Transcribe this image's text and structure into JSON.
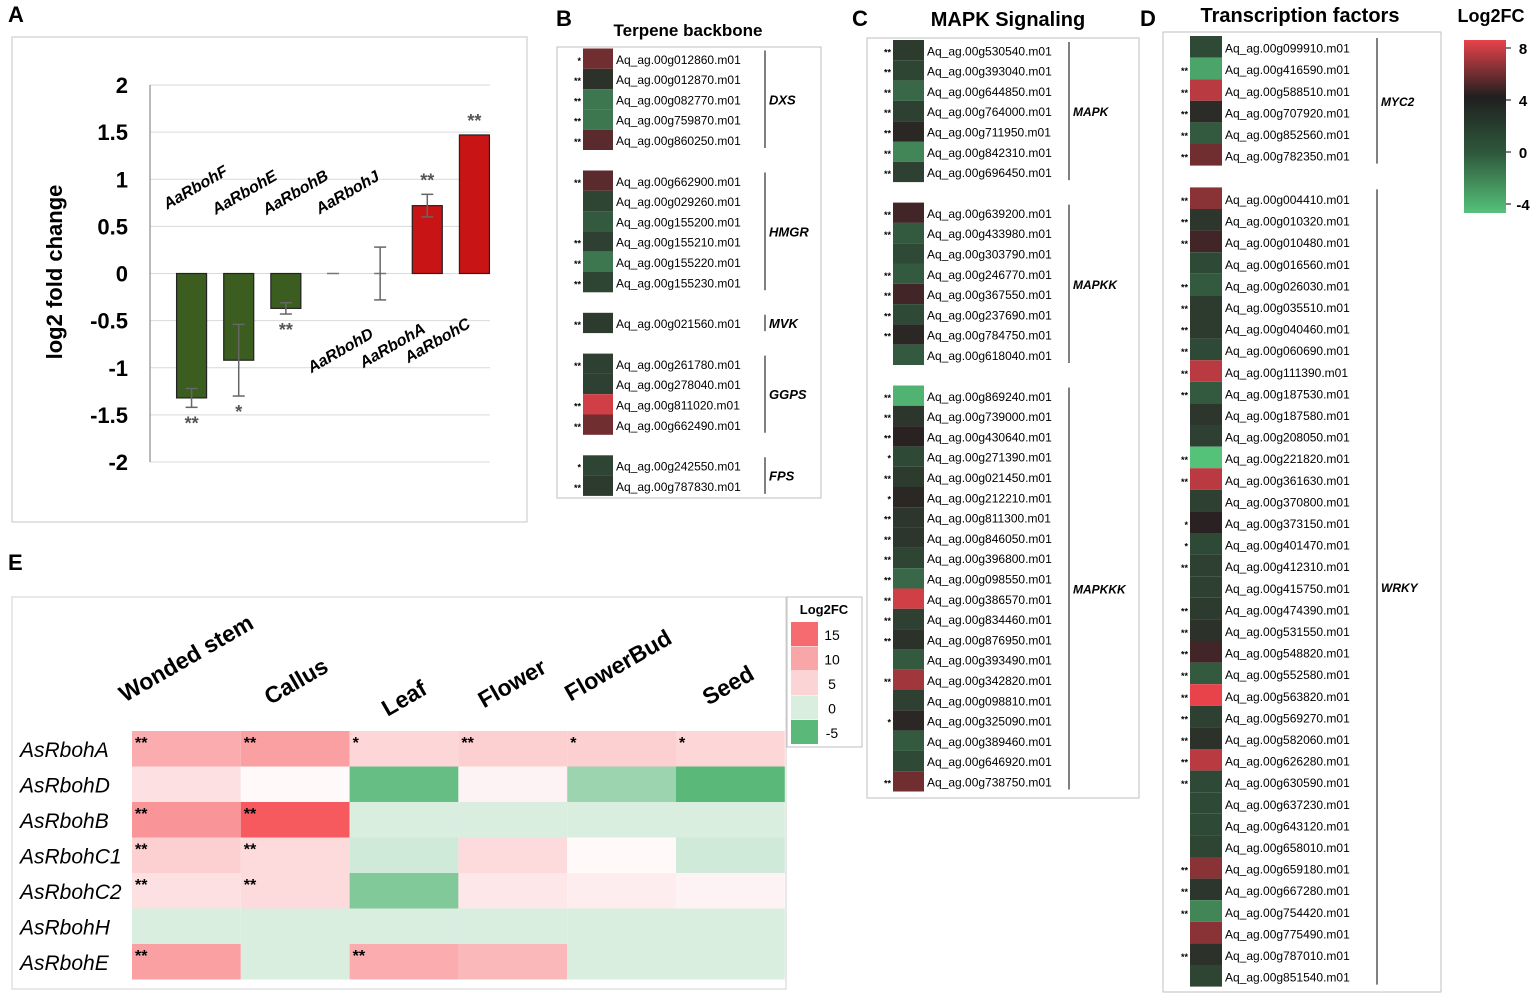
{
  "colors": {
    "heat_high": "#e8434b",
    "heat_mid": "#1f1f1f",
    "heat_low": "#55c27a",
    "bar_down": "#3b5d20",
    "bar_up": "#c81414",
    "rboh_high": "#f85a5e",
    "rboh_low": "#5ab879"
  },
  "chart_data": [
    {
      "type": "bar",
      "panel": "A",
      "ylabel": "log2 fold change",
      "ylim": [
        -2,
        2
      ],
      "yticks": [
        "2",
        "1.5",
        "1",
        "0.5",
        "0",
        "-0.5",
        "-1",
        "-1.5",
        "-2"
      ],
      "categories": [
        "AaRbohF",
        "AaRbohE",
        "AaRbohB",
        "AaRbohJ",
        "AaRbohD",
        "AaRbohA",
        "AaRbohC"
      ],
      "values": [
        -1.32,
        -0.92,
        -0.37,
        0.0,
        0.0,
        0.72,
        1.47
      ],
      "errors": [
        0.1,
        0.38,
        0.06,
        0.0,
        0.28,
        0.12,
        0.0
      ],
      "significance": [
        "**",
        "*",
        "**",
        "",
        "",
        "**",
        "**"
      ]
    },
    {
      "type": "heatmap",
      "panel": "B",
      "title": "Terpene backbone",
      "groups": [
        {
          "label": "DXS",
          "genes": [
            "Aq_ag.00g012860.m01",
            "Aq_ag.00g012870.m01",
            "Aq_ag.00g082770.m01",
            "Aq_ag.00g759870.m01",
            "Aq_ag.00g860250.m01"
          ],
          "values": [
            5.5,
            2.5,
            -1.5,
            -1.5,
            5
          ],
          "sig": [
            "*",
            "**",
            "**",
            "**",
            "**"
          ]
        },
        {
          "label": "HMGR",
          "genes": [
            "Aq_ag.00g662900.m01",
            "Aq_ag.00g029260.m01",
            "Aq_ag.00g155200.m01",
            "Aq_ag.00g155210.m01",
            "Aq_ag.00g155220.m01",
            "Aq_ag.00g155230.m01"
          ],
          "values": [
            5,
            0.5,
            -0.5,
            1,
            -1.5,
            0.5
          ],
          "sig": [
            "**",
            "",
            "",
            "**",
            "**",
            "**"
          ]
        },
        {
          "label": "MVK",
          "genes": [
            "Aq_ag.00g021560.m01"
          ],
          "values": [
            1.5
          ],
          "sig": [
            "**"
          ]
        },
        {
          "label": "GGPS",
          "genes": [
            "Aq_ag.00g261780.m01",
            "Aq_ag.00g278040.m01",
            "Aq_ag.00g811020.m01",
            "Aq_ag.00g662490.m01"
          ],
          "values": [
            1,
            1,
            7.5,
            5.5
          ],
          "sig": [
            "**",
            "",
            "**",
            "**"
          ]
        },
        {
          "label": "FPS",
          "genes": [
            "Aq_ag.00g242550.m01",
            "Aq_ag.00g787830.m01"
          ],
          "values": [
            0.5,
            1.5
          ],
          "sig": [
            "*",
            "**"
          ]
        }
      ]
    },
    {
      "type": "heatmap",
      "panel": "C",
      "title": "MAPK Signaling",
      "groups": [
        {
          "label": "MAPK",
          "genes": [
            "Aq_ag.00g530540.m01",
            "Aq_ag.00g393040.m01",
            "Aq_ag.00g644850.m01",
            "Aq_ag.00g764000.m01",
            "Aq_ag.00g711950.m01",
            "Aq_ag.00g842310.m01",
            "Aq_ag.00g696450.m01"
          ],
          "values": [
            1.5,
            0.5,
            -1,
            1,
            3.5,
            -2,
            1
          ],
          "sig": [
            "**",
            "**",
            "**",
            "**",
            "**",
            "**",
            "**"
          ]
        },
        {
          "label": "MAPKK",
          "genes": [
            "Aq_ag.00g639200.m01",
            "Aq_ag.00g433980.m01",
            "Aq_ag.00g303790.m01",
            "Aq_ag.00g246770.m01",
            "Aq_ag.00g367550.m01",
            "Aq_ag.00g237690.m01",
            "Aq_ag.00g784750.m01",
            "Aq_ag.00g618040.m01"
          ],
          "values": [
            4.5,
            -0.5,
            0,
            -0.5,
            4.5,
            0,
            3.5,
            -0.5
          ],
          "sig": [
            "**",
            "**",
            "",
            "**",
            "**",
            "**",
            "**",
            ""
          ]
        },
        {
          "label": "MAPKKK",
          "genes": [
            "Aq_ag.00g869240.m01",
            "Aq_ag.00g739000.m01",
            "Aq_ag.00g430640.m01",
            "Aq_ag.00g271390.m01",
            "Aq_ag.00g021450.m01",
            "Aq_ag.00g212210.m01",
            "Aq_ag.00g811300.m01",
            "Aq_ag.00g846050.m01",
            "Aq_ag.00g396800.m01",
            "Aq_ag.00g098550.m01",
            "Aq_ag.00g386570.m01",
            "Aq_ag.00g834460.m01",
            "Aq_ag.00g876950.m01",
            "Aq_ag.00g393490.m01",
            "Aq_ag.00g342820.m01",
            "Aq_ag.00g098810.m01",
            "Aq_ag.00g325090.m01",
            "Aq_ag.00g389460.m01",
            "Aq_ag.00g646920.m01",
            "Aq_ag.00g738750.m01"
          ],
          "values": [
            -3.5,
            2,
            4,
            0,
            1.5,
            3.5,
            2,
            2,
            0.5,
            -1,
            7.5,
            1,
            2.5,
            -0.5,
            6.5,
            1,
            3.5,
            -0.5,
            0,
            5.5
          ],
          "sig": [
            "**",
            "**",
            "**",
            "*",
            "**",
            "*",
            "**",
            "**",
            "**",
            "**",
            "**",
            "**",
            "**",
            "",
            "**",
            "",
            "*",
            "",
            "",
            "**"
          ]
        }
      ]
    },
    {
      "type": "heatmap",
      "panel": "D",
      "title": "Transcription factors",
      "groups": [
        {
          "label": "MYC2",
          "genes": [
            "Aq_ag.00g099910.m01",
            "Aq_ag.00g416590.m01",
            "Aq_ag.00g588510.m01",
            "Aq_ag.00g707920.m01",
            "Aq_ag.00g852560.m01",
            "Aq_ag.00g782350.m01"
          ],
          "values": [
            0,
            -3,
            7,
            3,
            -0.5,
            5.5
          ],
          "sig": [
            "",
            "**",
            "**",
            "**",
            "**",
            "**"
          ]
        },
        {
          "label": "WRKY",
          "genes": [
            "Aq_ag.00g004410.m01",
            "Aq_ag.00g010320.m01",
            "Aq_ag.00g010480.m01",
            "Aq_ag.00g016560.m01",
            "Aq_ag.00g026030.m01",
            "Aq_ag.00g035510.m01",
            "Aq_ag.00g040460.m01",
            "Aq_ag.00g060690.m01",
            "Aq_ag.00g111390.m01",
            "Aq_ag.00g187530.m01",
            "Aq_ag.00g187580.m01",
            "Aq_ag.00g208050.m01",
            "Aq_ag.00g221820.m01",
            "Aq_ag.00g361630.m01",
            "Aq_ag.00g370800.m01",
            "Aq_ag.00g373150.m01",
            "Aq_ag.00g401470.m01",
            "Aq_ag.00g412310.m01",
            "Aq_ag.00g415750.m01",
            "Aq_ag.00g474390.m01",
            "Aq_ag.00g531550.m01",
            "Aq_ag.00g548820.m01",
            "Aq_ag.00g552580.m01",
            "Aq_ag.00g563820.m01",
            "Aq_ag.00g569270.m01",
            "Aq_ag.00g582060.m01",
            "Aq_ag.00g626280.m01",
            "Aq_ag.00g630590.m01",
            "Aq_ag.00g637230.m01",
            "Aq_ag.00g643120.m01",
            "Aq_ag.00g658010.m01",
            "Aq_ag.00g659180.m01",
            "Aq_ag.00g667280.m01",
            "Aq_ag.00g754420.m01",
            "Aq_ag.00g775490.m01",
            "Aq_ag.00g787010.m01",
            "Aq_ag.00g851540.m01"
          ],
          "values": [
            6,
            2,
            4.5,
            0,
            -0.5,
            1.5,
            1.5,
            0,
            7,
            -0.5,
            2,
            1,
            -4,
            7,
            1,
            4,
            0,
            1,
            1,
            1.5,
            2.5,
            4.5,
            -0.5,
            8,
            1,
            2.5,
            7,
            0,
            0,
            0,
            0.5,
            6,
            2,
            -2,
            6,
            2.5,
            0.5
          ],
          "sig": [
            "**",
            "**",
            "**",
            "",
            "**",
            "**",
            "**",
            "**",
            "**",
            "**",
            "",
            "",
            "**",
            "**",
            "",
            "*",
            "*",
            "**",
            "",
            "**",
            "**",
            "**",
            "**",
            "**",
            "**",
            "**",
            "**",
            "**",
            "",
            "",
            "",
            "**",
            "**",
            "**",
            "",
            "**",
            ""
          ]
        }
      ]
    },
    {
      "type": "heatmap",
      "panel": "E",
      "columns": [
        "Wonded stem",
        "Callus",
        "Leaf",
        "Flower",
        "FlowerBud",
        "Seed"
      ],
      "rows": [
        "AsRbohA",
        "AsRbohD",
        "AsRbohB",
        "AsRbohC1",
        "AsRbohC2",
        "AsRbohH",
        "AsRbohE"
      ],
      "values": [
        [
          7,
          8,
          3.5,
          4,
          4,
          3.5
        ],
        [
          2.5,
          0.5,
          -4.5,
          1,
          -2.5,
          -5
        ],
        [
          9,
          14,
          0,
          0,
          0,
          0
        ],
        [
          4,
          3,
          -0.5,
          3,
          0.5,
          -0.5
        ],
        [
          2.5,
          3,
          -3.5,
          2,
          1.5,
          1
        ],
        [
          0,
          0,
          0,
          0,
          0,
          0
        ],
        [
          8,
          0,
          7,
          6,
          0,
          0
        ]
      ],
      "sig": [
        [
          "**",
          "**",
          "*",
          "**",
          "*",
          "*"
        ],
        [
          "",
          "",
          "",
          "",
          "",
          ""
        ],
        [
          "**",
          "**",
          "",
          "",
          "",
          ""
        ],
        [
          "**",
          "**",
          "",
          "",
          "",
          ""
        ],
        [
          "**",
          "**",
          "",
          "",
          "",
          ""
        ],
        [
          "",
          "",
          "",
          "",
          "",
          ""
        ],
        [
          "**",
          "",
          "**",
          "",
          "",
          ""
        ]
      ],
      "legend": {
        "title": "Log2FC",
        "ticks": [
          "15",
          "10",
          "5",
          "0",
          "-5"
        ]
      }
    }
  ],
  "legend_bcd": {
    "title": "Log2FC",
    "ticks": [
      "8",
      "4",
      "0",
      "-4"
    ]
  },
  "panel_labels": [
    "A",
    "B",
    "C",
    "D",
    "E"
  ]
}
